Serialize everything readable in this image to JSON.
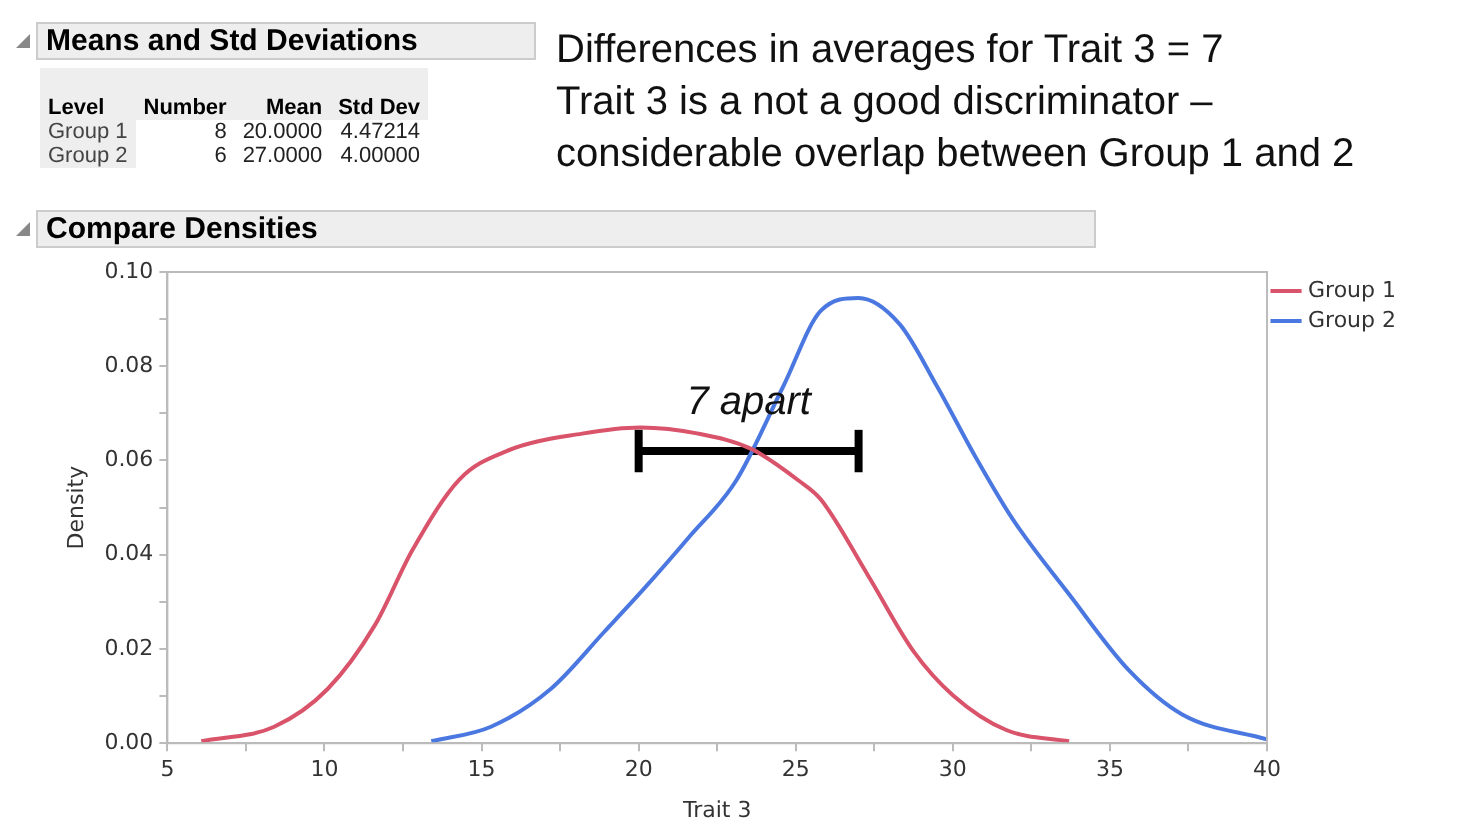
{
  "chart_data": [
    {
      "type": "other",
      "title": "Means and Std Deviations",
      "categories": [
        "Level",
        "Number",
        "Mean",
        "Std Dev"
      ],
      "cell_labels": [
        [
          "Group 1",
          "8",
          "20.0000",
          "4.47214"
        ],
        [
          "Group 2",
          "6",
          "27.0000",
          "4.00000"
        ]
      ]
    },
    {
      "type": "line",
      "title": "Compare Densities",
      "xlabel": "Trait 3",
      "ylabel": "Density",
      "annotations": [
        "Differences in averages for Trait 3 = 7",
        "Trait 3 is a not a good discriminator –",
        "considerable overlap between Group 1 and 2",
        {
          "text": "7 apart",
          "x": 23.5,
          "y": 0.062
        }
      ],
      "series": [
        {
          "name": "Group 1",
          "color": "#d9546a",
          "x": [
            6.08,
            8.4,
            10.1,
            11.6,
            12.8,
            14.3,
            15.8,
            18.2,
            20.05,
            21.9,
            23.6,
            25.1,
            25.8,
            27.3,
            28.75,
            30.0,
            31.7,
            33.7
          ],
          "values": [
            0.0004,
            0.0035,
            0.0115,
            0.025,
            0.041,
            0.056,
            0.062,
            0.0657,
            0.067,
            0.0657,
            0.0624,
            0.0557,
            0.0517,
            0.0356,
            0.0195,
            0.0102,
            0.0028,
            0.0004
          ]
        },
        {
          "name": "Group 2",
          "color": "#4a78e0",
          "x": [
            13.4,
            15.3,
            17.2,
            18.9,
            20.2,
            21.6,
            23.1,
            24.6,
            25.8,
            27.0,
            28.3,
            29.5,
            30.7,
            31.9,
            33.7,
            35.6,
            37.3,
            40.0
          ],
          "values": [
            0.0004,
            0.0035,
            0.0115,
            0.0236,
            0.033,
            0.0437,
            0.0557,
            0.0757,
            0.0918,
            0.0945,
            0.089,
            0.0757,
            0.061,
            0.0476,
            0.0316,
            0.0155,
            0.0061,
            0.0008
          ]
        },
        {
          "color": "#000000",
          "x": [
            20,
            27
          ],
          "values": [
            0.062,
            0.062
          ],
          "errors": [
            0.0045,
            0.0045
          ]
        }
      ],
      "xlim": [
        5,
        40
      ],
      "ylim": [
        0,
        0.1
      ],
      "xticks": [
        5,
        {
          "value": 7.5,
          "label": null
        },
        10,
        {
          "value": 12.5,
          "label": null
        },
        15,
        {
          "value": 17.5,
          "label": null
        },
        20,
        {
          "value": 22.5,
          "label": null
        },
        25,
        {
          "value": 27.5,
          "label": null
        },
        30,
        {
          "value": 32.5,
          "label": null
        },
        35,
        {
          "value": 37.5,
          "label": null
        },
        40
      ],
      "yticks": [
        {
          "value": 0,
          "label": "0.00"
        },
        {
          "value": 0.01,
          "label": null
        },
        {
          "value": 0.02,
          "label": "0.02"
        },
        {
          "value": 0.03,
          "label": null
        },
        {
          "value": 0.04,
          "label": "0.04"
        },
        {
          "value": 0.05,
          "label": null
        },
        {
          "value": 0.06,
          "label": "0.06"
        },
        {
          "value": 0.07,
          "label": null
        },
        {
          "value": 0.08,
          "label": "0.08"
        },
        {
          "value": 0.09,
          "label": null
        },
        {
          "value": 0.1,
          "label": "0.10"
        }
      ],
      "grid": false,
      "legend": "top right",
      "marker": "none",
      "line_style": "solid"
    }
  ]
}
